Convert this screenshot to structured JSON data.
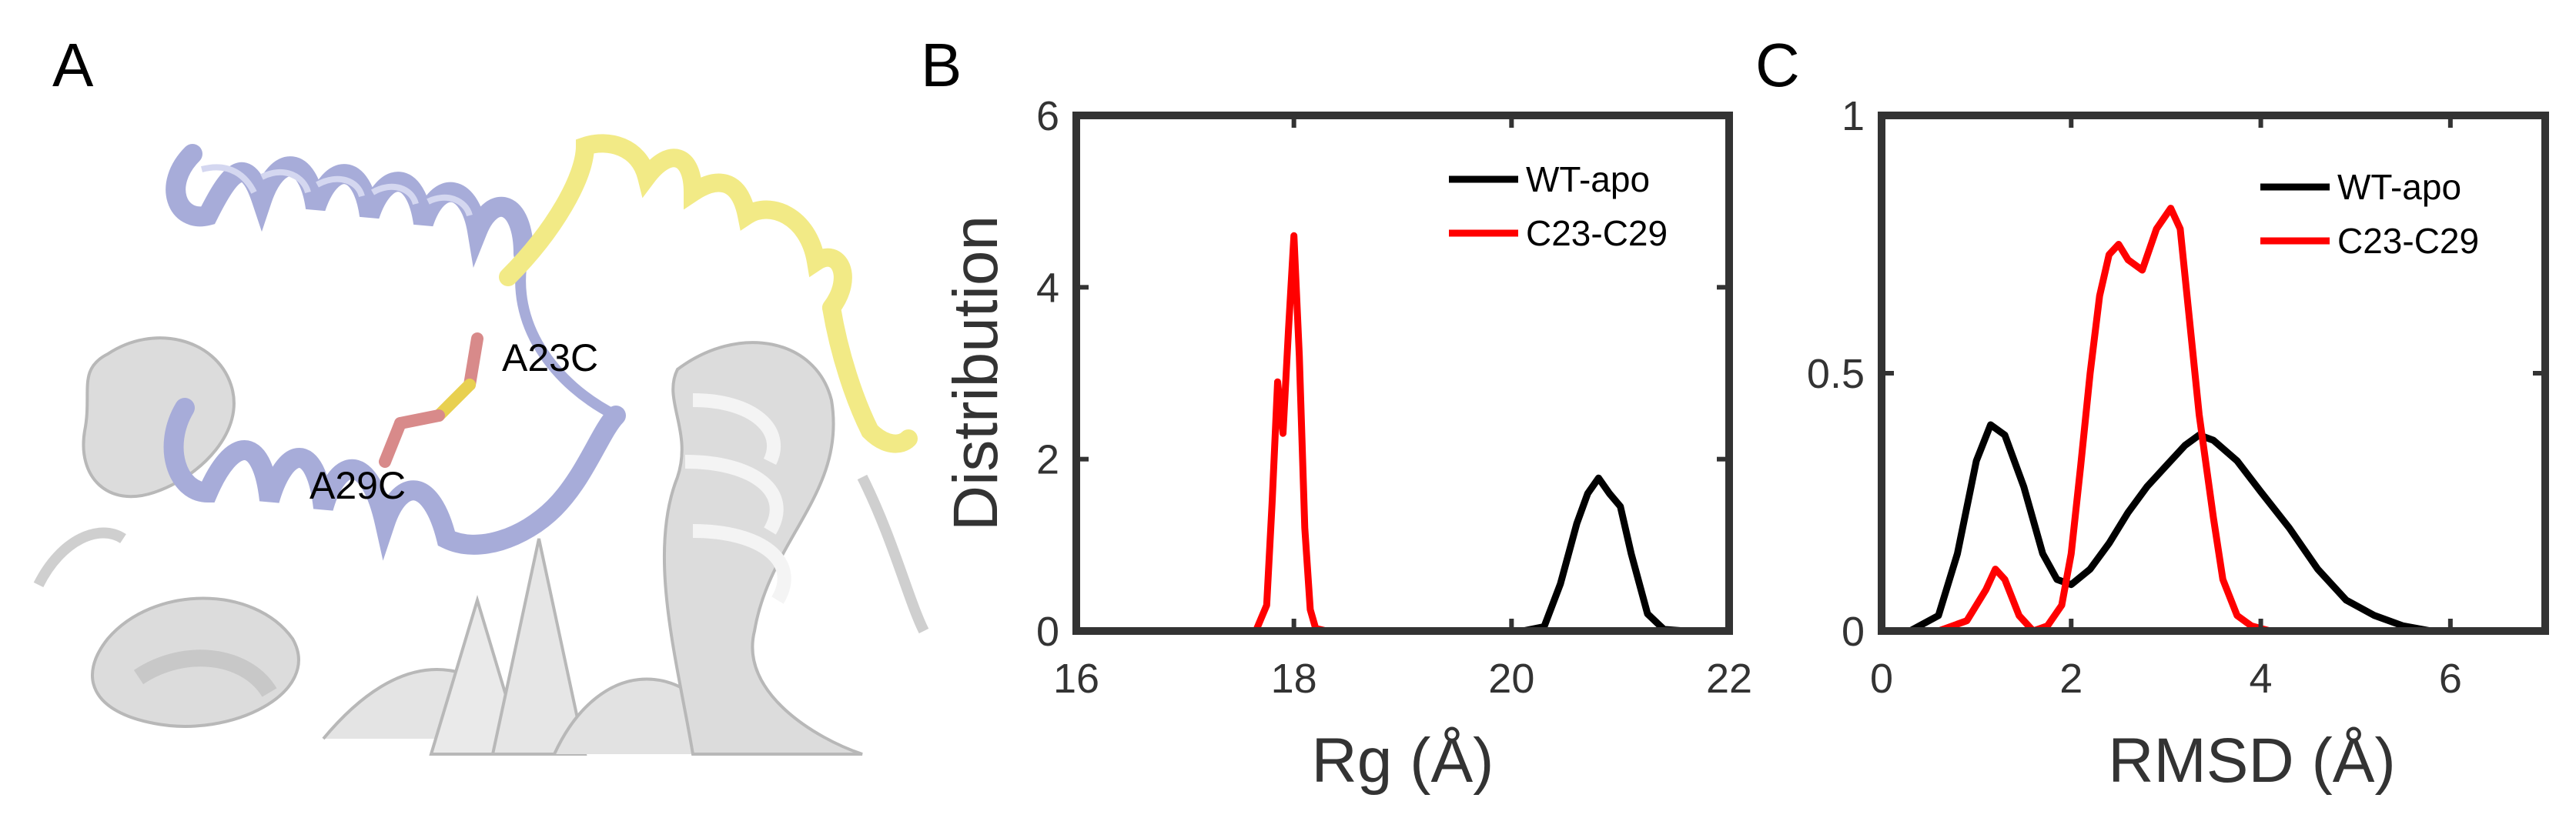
{
  "figure": {
    "panels": [
      "A",
      "B",
      "C"
    ]
  },
  "structure": {
    "labels": [
      "A23C",
      "A29C"
    ]
  },
  "chart_data": [
    {
      "id": "B",
      "type": "line",
      "title": "",
      "xlabel": "Rg (Å)",
      "ylabel": "Distribution",
      "xlim": [
        16,
        22
      ],
      "ylim": [
        0,
        6
      ],
      "xticks": [
        16,
        18,
        20,
        22
      ],
      "yticks": [
        0,
        2,
        4,
        6
      ],
      "legend": "top-right",
      "series": [
        {
          "name": "WT-apo",
          "color": "#000000",
          "x": [
            20.1,
            20.3,
            20.45,
            20.6,
            20.7,
            20.8,
            20.9,
            21.0,
            21.1,
            21.25,
            21.4,
            21.6
          ],
          "y": [
            0.0,
            0.05,
            0.55,
            1.25,
            1.6,
            1.78,
            1.6,
            1.45,
            0.9,
            0.2,
            0.02,
            0.0
          ]
        },
        {
          "name": "C23-C29",
          "color": "#ff0000",
          "x": [
            17.65,
            17.75,
            17.8,
            17.85,
            17.9,
            17.95,
            18.0,
            18.05,
            18.1,
            18.15,
            18.2,
            18.3
          ],
          "y": [
            0.0,
            0.3,
            1.5,
            2.9,
            2.3,
            3.5,
            4.6,
            3.2,
            1.2,
            0.25,
            0.03,
            0.0
          ]
        }
      ]
    },
    {
      "id": "C",
      "type": "line",
      "title": "",
      "xlabel": "RMSD (Å)",
      "ylabel": "",
      "xlim": [
        0,
        7
      ],
      "ylim": [
        0,
        1
      ],
      "xticks": [
        0,
        2,
        4,
        6
      ],
      "yticks": [
        0,
        0.5,
        1
      ],
      "legend": "top-right",
      "series": [
        {
          "name": "WT-apo",
          "color": "#000000",
          "x": [
            0.0,
            0.3,
            0.6,
            0.8,
            1.0,
            1.15,
            1.3,
            1.5,
            1.7,
            1.85,
            2.0,
            2.2,
            2.4,
            2.6,
            2.8,
            3.0,
            3.2,
            3.35,
            3.5,
            3.75,
            4.0,
            4.3,
            4.6,
            4.9,
            5.2,
            5.5,
            5.8,
            6.0
          ],
          "y": [
            0.0,
            0.0,
            0.03,
            0.15,
            0.33,
            0.4,
            0.38,
            0.28,
            0.15,
            0.1,
            0.09,
            0.12,
            0.17,
            0.23,
            0.28,
            0.32,
            0.36,
            0.38,
            0.37,
            0.33,
            0.27,
            0.2,
            0.12,
            0.06,
            0.03,
            0.01,
            0.0,
            0.0
          ]
        },
        {
          "name": "C23-C29",
          "color": "#ff0000",
          "x": [
            0.0,
            0.6,
            0.9,
            1.1,
            1.2,
            1.3,
            1.45,
            1.6,
            1.75,
            1.9,
            2.0,
            2.1,
            2.2,
            2.3,
            2.4,
            2.5,
            2.6,
            2.75,
            2.9,
            3.05,
            3.15,
            3.25,
            3.35,
            3.5,
            3.6,
            3.75,
            3.9,
            4.1,
            4.4
          ],
          "y": [
            0.0,
            0.0,
            0.02,
            0.08,
            0.12,
            0.1,
            0.03,
            0.0,
            0.01,
            0.05,
            0.15,
            0.32,
            0.5,
            0.65,
            0.73,
            0.75,
            0.72,
            0.7,
            0.78,
            0.82,
            0.78,
            0.6,
            0.42,
            0.22,
            0.1,
            0.03,
            0.01,
            0.0,
            0.0
          ]
        }
      ]
    }
  ]
}
